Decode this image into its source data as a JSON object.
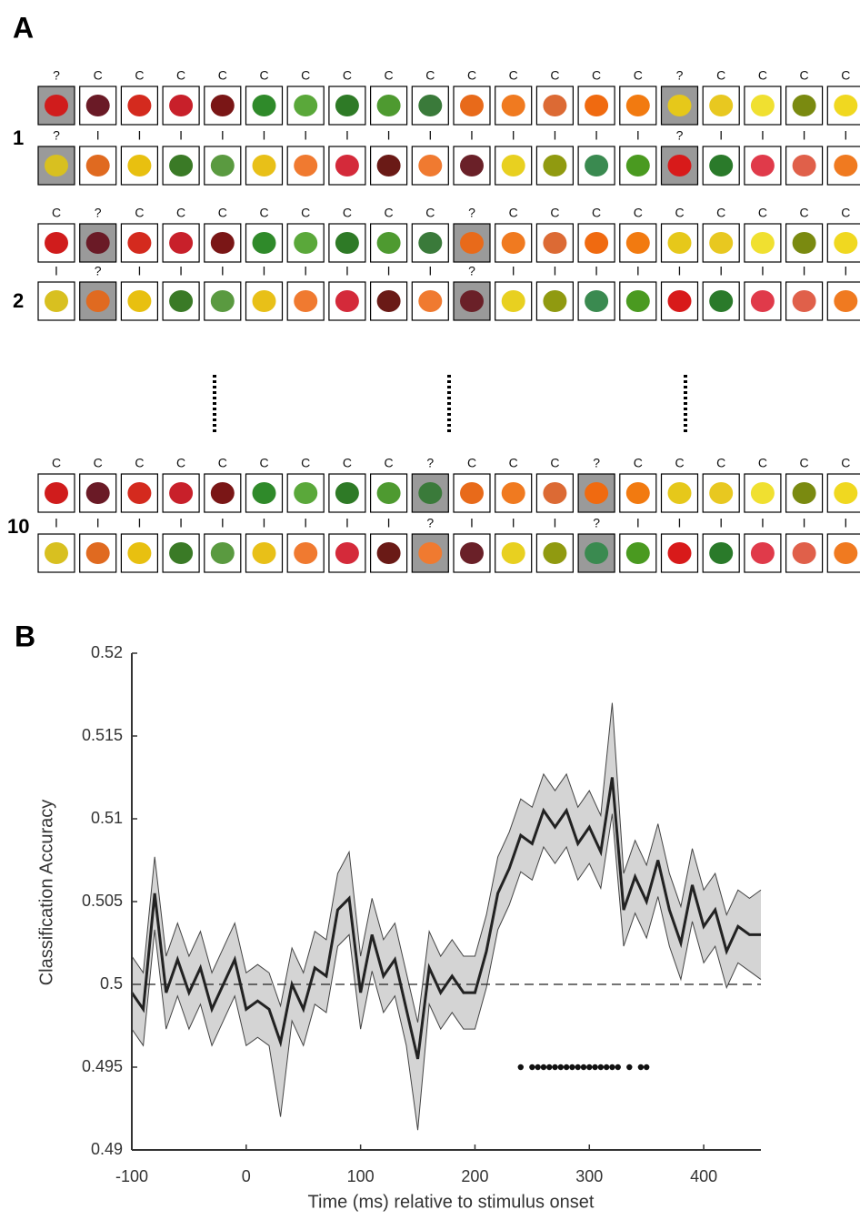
{
  "panel_a": {
    "label": "A",
    "groups": [
      {
        "label": "1",
        "rows": [
          [
            "?",
            "C",
            "C",
            "C",
            "C",
            "C",
            "C",
            "C",
            "C",
            "C",
            "C",
            "C",
            "C",
            "C",
            "C",
            "?",
            "C",
            "C",
            "C",
            "C"
          ],
          [
            "?",
            "I",
            "I",
            "I",
            "I",
            "I",
            "I",
            "I",
            "I",
            "I",
            "I",
            "I",
            "I",
            "I",
            "I",
            "?",
            "I",
            "I",
            "I",
            "I"
          ]
        ]
      },
      {
        "label": "2",
        "rows": [
          [
            "C",
            "?",
            "C",
            "C",
            "C",
            "C",
            "C",
            "C",
            "C",
            "C",
            "?",
            "C",
            "C",
            "C",
            "C",
            "C",
            "C",
            "C",
            "C",
            "C"
          ],
          [
            "I",
            "?",
            "I",
            "I",
            "I",
            "I",
            "I",
            "I",
            "I",
            "I",
            "?",
            "I",
            "I",
            "I",
            "I",
            "I",
            "I",
            "I",
            "I",
            "I"
          ]
        ]
      },
      {
        "label": "10",
        "rows": [
          [
            "C",
            "C",
            "C",
            "C",
            "C",
            "C",
            "C",
            "C",
            "C",
            "?",
            "C",
            "C",
            "C",
            "?",
            "C",
            "C",
            "C",
            "C",
            "C",
            "C"
          ],
          [
            "I",
            "I",
            "I",
            "I",
            "I",
            "I",
            "I",
            "I",
            "I",
            "?",
            "I",
            "I",
            "I",
            "?",
            "I",
            "I",
            "I",
            "I",
            "I",
            "I"
          ]
        ]
      }
    ]
  },
  "chart_data": {
    "type": "line",
    "panel_label": "B",
    "xlabel": "Time (ms) relative to stimulus onset",
    "ylabel": "Classification Accuracy",
    "xlim": [
      -100,
      450
    ],
    "xticks": [
      -100,
      0,
      100,
      200,
      300,
      400
    ],
    "ylim": [
      0.49,
      0.52
    ],
    "yticks": [
      0.49,
      0.495,
      0.5,
      0.505,
      0.51,
      0.515,
      0.52
    ],
    "color": "#222222",
    "band_color": "#d4d4d4",
    "x": [
      -100,
      -90,
      -80,
      -70,
      -60,
      -50,
      -40,
      -30,
      -20,
      -10,
      0,
      10,
      20,
      30,
      40,
      50,
      60,
      70,
      80,
      90,
      100,
      110,
      120,
      130,
      140,
      150,
      160,
      170,
      180,
      190,
      200,
      210,
      220,
      230,
      240,
      250,
      260,
      270,
      280,
      290,
      300,
      310,
      320,
      330,
      340,
      350,
      360,
      370,
      380,
      390,
      400,
      410,
      420,
      430,
      440,
      450
    ],
    "values": [
      0.4995,
      0.4985,
      0.5055,
      0.4995,
      0.5015,
      0.4995,
      0.501,
      0.4985,
      0.5,
      0.5015,
      0.4985,
      0.499,
      0.4985,
      0.4965,
      0.5,
      0.4985,
      0.501,
      0.5005,
      0.5045,
      0.5052,
      0.4995,
      0.503,
      0.5005,
      0.5015,
      0.4985,
      0.4955,
      0.501,
      0.4995,
      0.5005,
      0.4995,
      0.4995,
      0.502,
      0.5055,
      0.507,
      0.509,
      0.5085,
      0.5105,
      0.5095,
      0.5105,
      0.5085,
      0.5095,
      0.508,
      0.5125,
      0.5045,
      0.5065,
      0.505,
      0.5075,
      0.5045,
      0.5025,
      0.506,
      0.5035,
      0.5045,
      0.502,
      0.5035,
      0.503,
      0.503
    ],
    "upper": [
      0.5017,
      0.5007,
      0.5077,
      0.5017,
      0.5037,
      0.5017,
      0.5032,
      0.5007,
      0.5022,
      0.5037,
      0.5007,
      0.5012,
      0.5007,
      0.4987,
      0.5022,
      0.5007,
      0.5032,
      0.5027,
      0.5067,
      0.508,
      0.5017,
      0.5052,
      0.5027,
      0.5037,
      0.5007,
      0.4977,
      0.5032,
      0.5017,
      0.5027,
      0.5017,
      0.5017,
      0.5042,
      0.5077,
      0.5092,
      0.5112,
      0.5107,
      0.5127,
      0.5117,
      0.5127,
      0.5107,
      0.5117,
      0.5102,
      0.517,
      0.5067,
      0.5087,
      0.5072,
      0.5097,
      0.5067,
      0.5047,
      0.5082,
      0.5057,
      0.5067,
      0.5042,
      0.5057,
      0.5052,
      0.5057
    ],
    "lower": [
      0.4973,
      0.4963,
      0.5033,
      0.4973,
      0.4993,
      0.4973,
      0.4988,
      0.4963,
      0.4978,
      0.4993,
      0.4963,
      0.4968,
      0.4963,
      0.492,
      0.4978,
      0.4963,
      0.4988,
      0.4983,
      0.5023,
      0.503,
      0.4973,
      0.5008,
      0.4983,
      0.4993,
      0.4963,
      0.4912,
      0.4988,
      0.4973,
      0.4983,
      0.4973,
      0.4973,
      0.4998,
      0.5033,
      0.5048,
      0.5068,
      0.5063,
      0.5083,
      0.5073,
      0.5083,
      0.5063,
      0.5073,
      0.5058,
      0.5103,
      0.5023,
      0.5043,
      0.5028,
      0.5053,
      0.5023,
      0.5003,
      0.5038,
      0.5013,
      0.5023,
      0.4998,
      0.5013,
      0.5008,
      0.5003
    ],
    "reference_line": 0.5,
    "significance_y": 0.495,
    "significant_x": [
      240,
      250,
      255,
      260,
      265,
      270,
      275,
      280,
      285,
      290,
      295,
      300,
      305,
      310,
      315,
      320,
      325,
      335,
      345,
      350
    ]
  }
}
